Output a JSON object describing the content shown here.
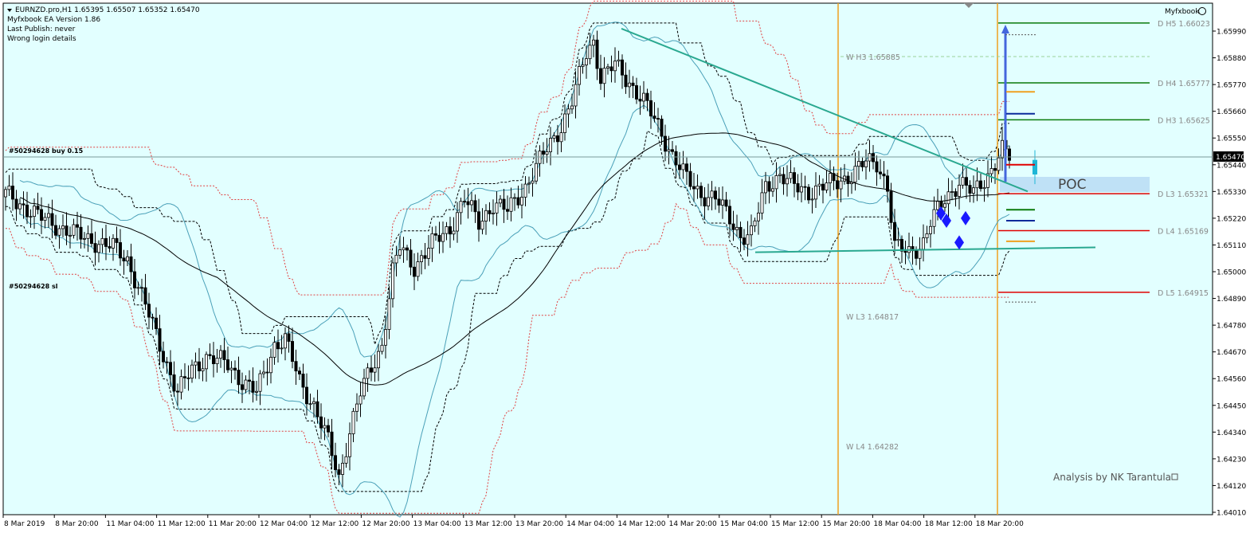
{
  "header": {
    "symbol_line": "EURNZD.pro,H1  1.65395 1.65507 1.65352 1.65470",
    "ea_version": "Myfxbook EA Version 1.86",
    "last_publish": "Last Publish: never",
    "login_status": "Wrong login details",
    "myfxbook_label": "Myfxbook"
  },
  "trade_labels": {
    "buy": "#50294628 buy 0.15",
    "sl": "#50294628 sl"
  },
  "watermark": "Analysis by NK Tarantula",
  "poc_label": "POC",
  "current_price_label": "1.65470",
  "colors": {
    "background": "#e2ffff",
    "pivot_green": "#0a7a0a",
    "pivot_red": "#e00000",
    "session_orange": "#f0a020",
    "trendline": "#2aa890",
    "bollinger": "#4aa0b8",
    "projection_blue": "#4466dd",
    "poc_fill": "#b8dcf5",
    "envelope_red": "#e04040"
  },
  "chart_data": {
    "type": "candlestick",
    "title": "",
    "ylim": [
      1.6398,
      1.6615
    ],
    "y_ticks": [
      "1.65990",
      "1.65880",
      "1.65770",
      "1.65660",
      "1.65550",
      "1.65440",
      "1.65330",
      "1.65220",
      "1.65110",
      "1.65000",
      "1.64890",
      "1.64780",
      "1.64670",
      "1.64560",
      "1.64450",
      "1.64340",
      "1.64230",
      "1.64120",
      "1.64010"
    ],
    "x_labels": [
      "8 Mar 2019",
      "8 Mar 20:00",
      "11 Mar 04:00",
      "11 Mar 12:00",
      "11 Mar 20:00",
      "12 Mar 04:00",
      "12 Mar 12:00",
      "12 Mar 20:00",
      "13 Mar 04:00",
      "13 Mar 12:00",
      "13 Mar 20:00",
      "14 Mar 04:00",
      "14 Mar 12:00",
      "14 Mar 20:00",
      "15 Mar 04:00",
      "15 Mar 12:00",
      "15 Mar 20:00",
      "18 Mar 04:00",
      "18 Mar 12:00",
      "18 Mar 20:00"
    ],
    "series": [
      {
        "name": "EURNZD.pro,H1",
        "anchors": [
          [
            0,
            1.6532
          ],
          [
            10,
            1.6522
          ],
          [
            20,
            1.6515
          ],
          [
            30,
            1.651
          ],
          [
            34,
            1.6505
          ],
          [
            38,
            1.649
          ],
          [
            43,
            1.647
          ],
          [
            48,
            1.645
          ],
          [
            52,
            1.646
          ],
          [
            56,
            1.6465
          ],
          [
            62,
            1.6462
          ],
          [
            66,
            1.6455
          ],
          [
            70,
            1.645
          ],
          [
            75,
            1.647
          ],
          [
            78,
            1.6472
          ],
          [
            82,
            1.6455
          ],
          [
            86,
            1.6445
          ],
          [
            90,
            1.643
          ],
          [
            93,
            1.6415
          ],
          [
            96,
            1.6435
          ],
          [
            99,
            1.645
          ],
          [
            102,
            1.646
          ],
          [
            105,
            1.647
          ],
          [
            108,
            1.65
          ],
          [
            110,
            1.651
          ],
          [
            114,
            1.6502
          ],
          [
            118,
            1.651
          ],
          [
            124,
            1.6518
          ],
          [
            128,
            1.653
          ],
          [
            132,
            1.652
          ],
          [
            136,
            1.6528
          ],
          [
            140,
            1.6525
          ],
          [
            145,
            1.6535
          ],
          [
            150,
            1.6548
          ],
          [
            155,
            1.656
          ],
          [
            158,
            1.657
          ],
          [
            162,
            1.659
          ],
          [
            164,
            1.6595
          ],
          [
            166,
            1.658
          ],
          [
            170,
            1.6585
          ],
          [
            174,
            1.6578
          ],
          [
            178,
            1.657
          ],
          [
            182,
            1.656
          ],
          [
            186,
            1.6548
          ],
          [
            190,
            1.6538
          ],
          [
            194,
            1.6532
          ],
          [
            198,
            1.653
          ],
          [
            202,
            1.6522
          ],
          [
            205,
            1.6515
          ],
          [
            208,
            1.6515
          ],
          [
            212,
            1.6535
          ],
          [
            216,
            1.654
          ],
          [
            220,
            1.6535
          ],
          [
            224,
            1.6533
          ],
          [
            228,
            1.6535
          ],
          [
            232,
            1.6537
          ],
          [
            236,
            1.654
          ],
          [
            240,
            1.6545
          ],
          [
            243,
            1.6545
          ],
          [
            246,
            1.6535
          ],
          [
            248,
            1.651
          ],
          [
            252,
            1.6508
          ],
          [
            256,
            1.6512
          ],
          [
            258,
            1.652
          ],
          [
            262,
            1.653
          ],
          [
            266,
            1.6537
          ],
          [
            270,
            1.6532
          ],
          [
            274,
            1.654
          ],
          [
            278,
            1.655
          ],
          [
            280,
            1.6547
          ]
        ]
      }
    ],
    "pivot_levels": [
      {
        "label": "D  H5 1.66023",
        "value": 1.66023,
        "color": "green"
      },
      {
        "label": "W  H3 1.65885",
        "value": 1.65885,
        "color": "faint-green"
      },
      {
        "label": "D  H4 1.65777",
        "value": 1.65777,
        "color": "green"
      },
      {
        "label": "D  H3 1.65625",
        "value": 1.65625,
        "color": "green"
      },
      {
        "label": "D  L3 1.65321",
        "value": 1.65321,
        "color": "red"
      },
      {
        "label": "D  L4 1.65169",
        "value": 1.65169,
        "color": "red"
      },
      {
        "label": "D  L5 1.64915",
        "value": 1.64915,
        "color": "red"
      },
      {
        "label": "W  L3 1.64817",
        "value": 1.64817,
        "color": "none"
      },
      {
        "label": "W  L4 1.64282",
        "value": 1.64282,
        "color": "none"
      }
    ],
    "current_price": 1.6547,
    "grid": false,
    "legend": "none"
  }
}
